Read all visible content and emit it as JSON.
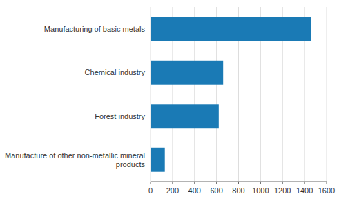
{
  "chart_data": {
    "type": "bar",
    "orientation": "horizontal",
    "categories": [
      "Manufacture of other non-metallic mineral\nproducts",
      "Forest industry",
      "Chemical industry",
      "Manufacturing of basic metals"
    ],
    "values": [
      130,
      620,
      660,
      1460
    ],
    "color": "#1a7ab5",
    "xlim": [
      0,
      1600
    ],
    "xticks": [
      0,
      200,
      400,
      600,
      800,
      1000,
      1200,
      1400,
      1600
    ],
    "grid": true
  }
}
